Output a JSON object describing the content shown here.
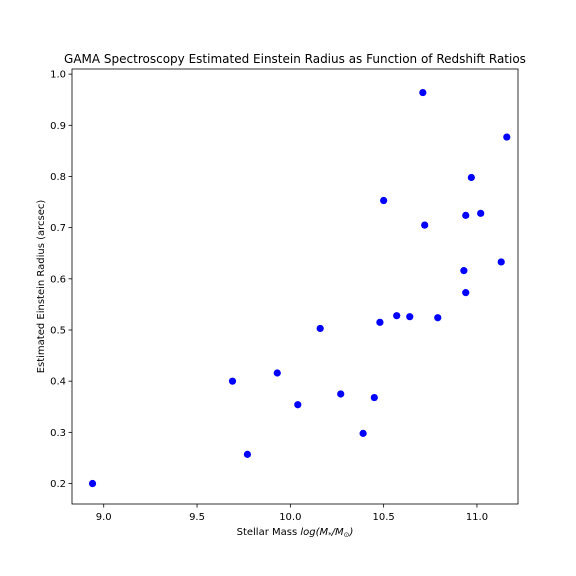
{
  "chart_data": {
    "type": "scatter",
    "title": "GAMA Spectroscopy Estimated Einstein Radius as Function of Redshift Ratios",
    "xlabel": {
      "prefix": "Stellar Mass ",
      "math": "log(M",
      "sub": "*",
      "slash": "/M",
      "sub2": "⊙",
      "close": ")"
    },
    "ylabel": "Estimated Einstein Radius (arcsec)",
    "xlim": [
      8.83,
      11.22
    ],
    "ylim": [
      0.16,
      1.01
    ],
    "xticks": [
      "9.0",
      "9.5",
      "10.0",
      "10.5",
      "11.0"
    ],
    "yticks": [
      "0.2",
      "0.3",
      "0.4",
      "0.5",
      "0.6",
      "0.7",
      "0.8",
      "0.9",
      "1.0"
    ],
    "grid": false,
    "legend": "none",
    "marker_color": "#0000ff",
    "x": [
      8.94,
      9.69,
      9.77,
      9.93,
      10.04,
      10.16,
      10.27,
      10.39,
      10.45,
      10.48,
      10.5,
      10.57,
      10.64,
      10.71,
      10.72,
      10.79,
      10.93,
      10.94,
      10.94,
      10.97,
      11.02,
      11.13,
      11.16
    ],
    "y": [
      0.2,
      0.4,
      0.257,
      0.416,
      0.354,
      0.503,
      0.375,
      0.298,
      0.368,
      0.515,
      0.753,
      0.528,
      0.526,
      0.964,
      0.705,
      0.524,
      0.616,
      0.573,
      0.724,
      0.798,
      0.728,
      0.633,
      0.877
    ]
  }
}
